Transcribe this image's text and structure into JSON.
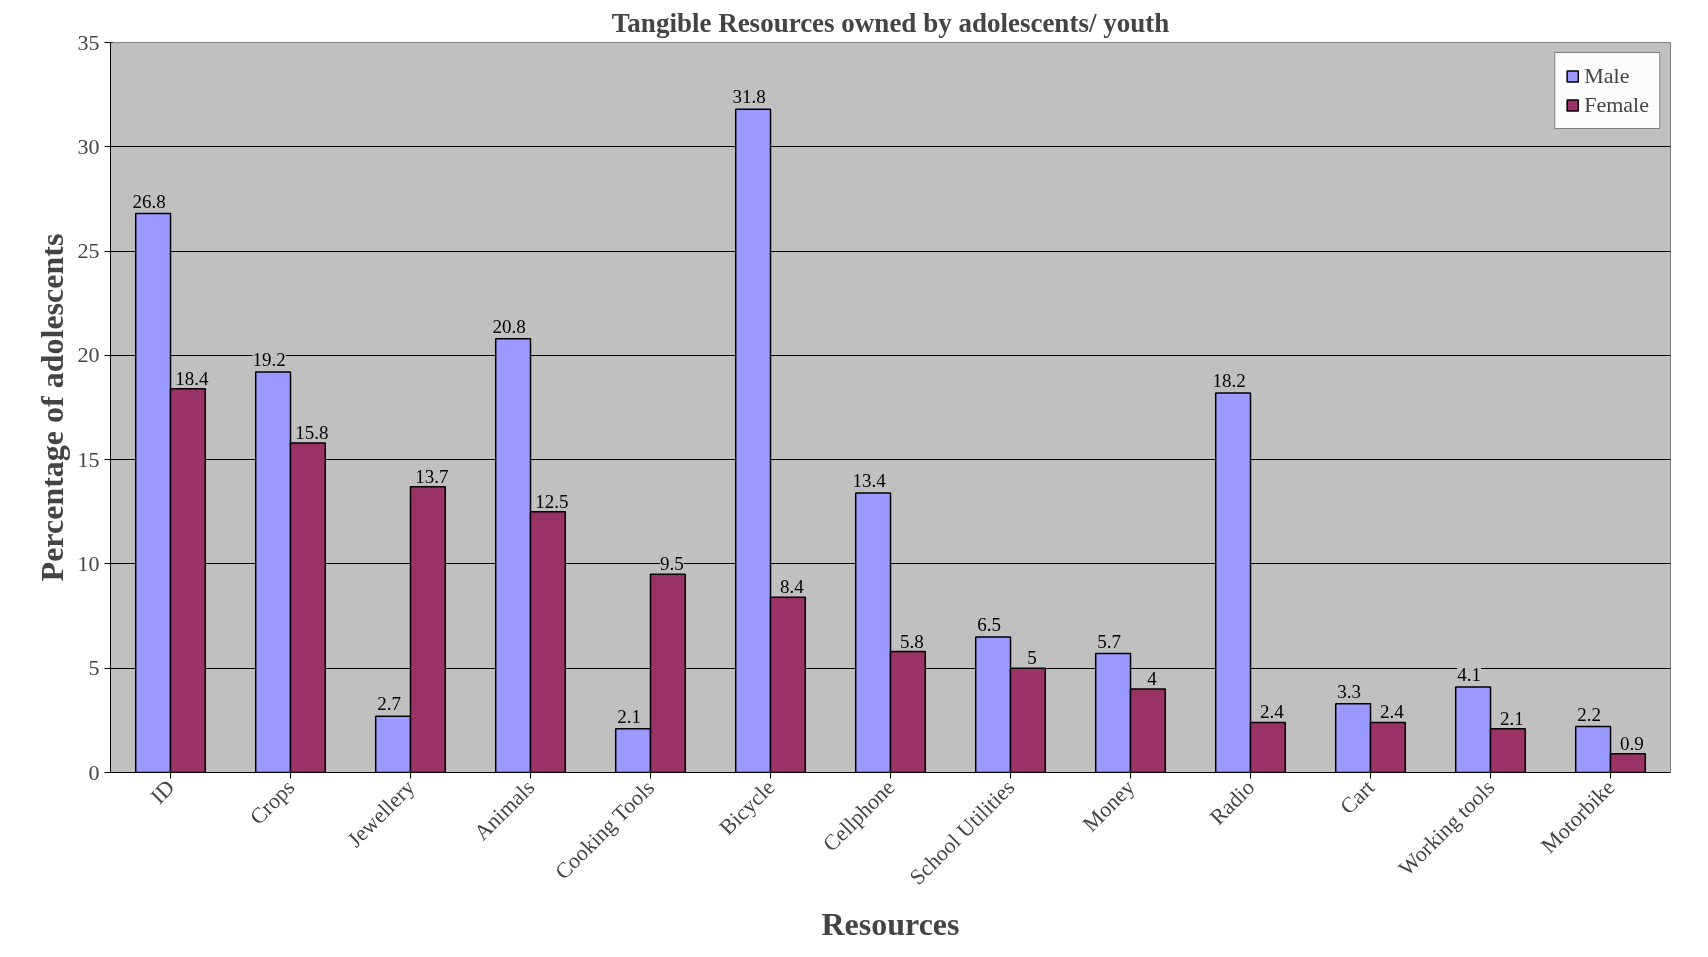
{
  "chart_data": {
    "type": "bar",
    "title": "Tangible Resources owned by adolescents/ youth",
    "xlabel": "Resources",
    "ylabel": "Percentage of adolescents",
    "categories": [
      "ID",
      "Crops",
      "Jewellery",
      "Animals",
      "Cooking Tools",
      "Bicycle",
      "Cellphone",
      "School Utilities",
      "Money",
      "Radio",
      "Cart",
      "Working tools",
      "Motorbike"
    ],
    "series": [
      {
        "name": "Male",
        "color": "#9999ff",
        "values": [
          26.8,
          19.2,
          2.7,
          20.8,
          2.1,
          31.8,
          13.4,
          6.5,
          5.7,
          18.2,
          3.3,
          4.1,
          2.2
        ]
      },
      {
        "name": "Female",
        "color": "#993366",
        "values": [
          18.4,
          15.8,
          13.7,
          12.5,
          9.5,
          8.4,
          5.8,
          5,
          4,
          2.4,
          2.4,
          2.1,
          0.9
        ]
      }
    ],
    "ylim": [
      0,
      35
    ],
    "yticks": [
      0,
      5,
      10,
      15,
      20,
      25,
      30,
      35
    ],
    "grid": "y",
    "legend": "top right",
    "data_labels": true
  }
}
